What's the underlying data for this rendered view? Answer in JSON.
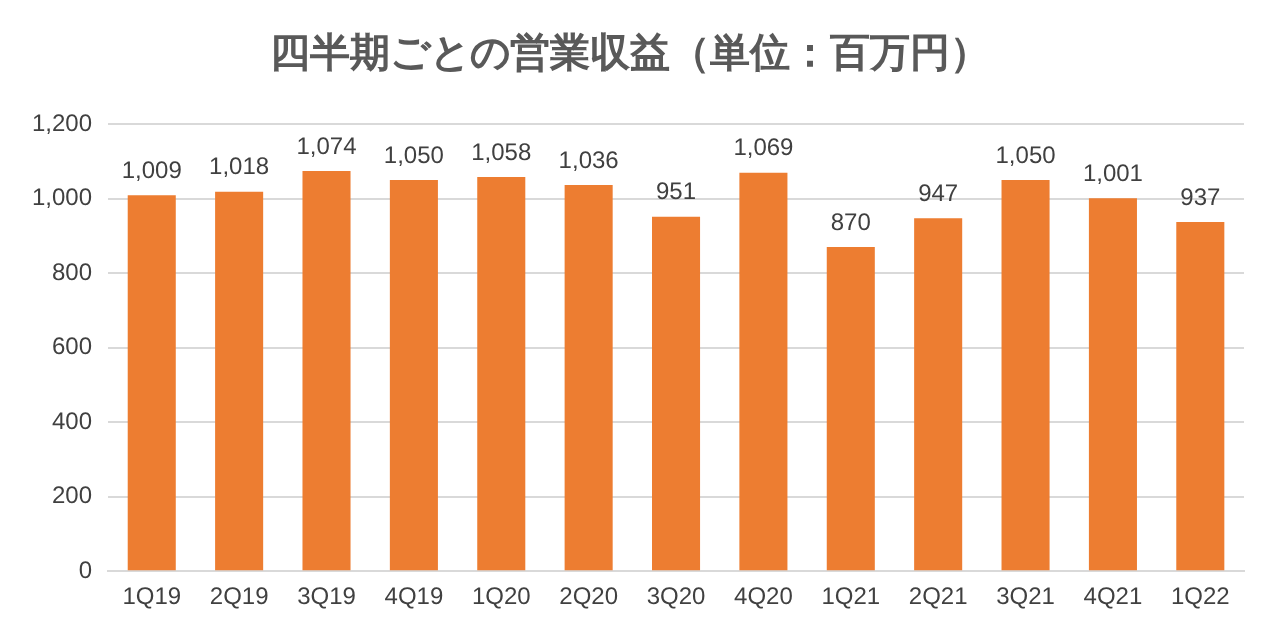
{
  "chart_data": {
    "type": "bar",
    "title": "四半期ごとの営業収益（単位：百万円）",
    "categories": [
      "1Q19",
      "2Q19",
      "3Q19",
      "4Q19",
      "1Q20",
      "2Q20",
      "3Q20",
      "4Q20",
      "1Q21",
      "2Q21",
      "3Q21",
      "4Q21",
      "1Q22"
    ],
    "values": [
      1009,
      1018,
      1074,
      1050,
      1058,
      1036,
      951,
      1069,
      870,
      947,
      1050,
      1001,
      937
    ],
    "value_labels": [
      "1,009",
      "1,018",
      "1,074",
      "1,050",
      "1,058",
      "1,036",
      "951",
      "1,069",
      "870",
      "947",
      "1,050",
      "1,001",
      "937"
    ],
    "color": "#ed7d31",
    "ylim": [
      0,
      1200
    ],
    "yticks": [
      {
        "value": 0,
        "label": "0"
      },
      {
        "value": 200,
        "label": "200"
      },
      {
        "value": 400,
        "label": "400"
      },
      {
        "value": 600,
        "label": "600"
      },
      {
        "value": 800,
        "label": "800"
      },
      {
        "value": 1000,
        "label": "1,000"
      },
      {
        "value": 1200,
        "label": "1,200"
      }
    ],
    "grid": "y",
    "legend": false
  }
}
